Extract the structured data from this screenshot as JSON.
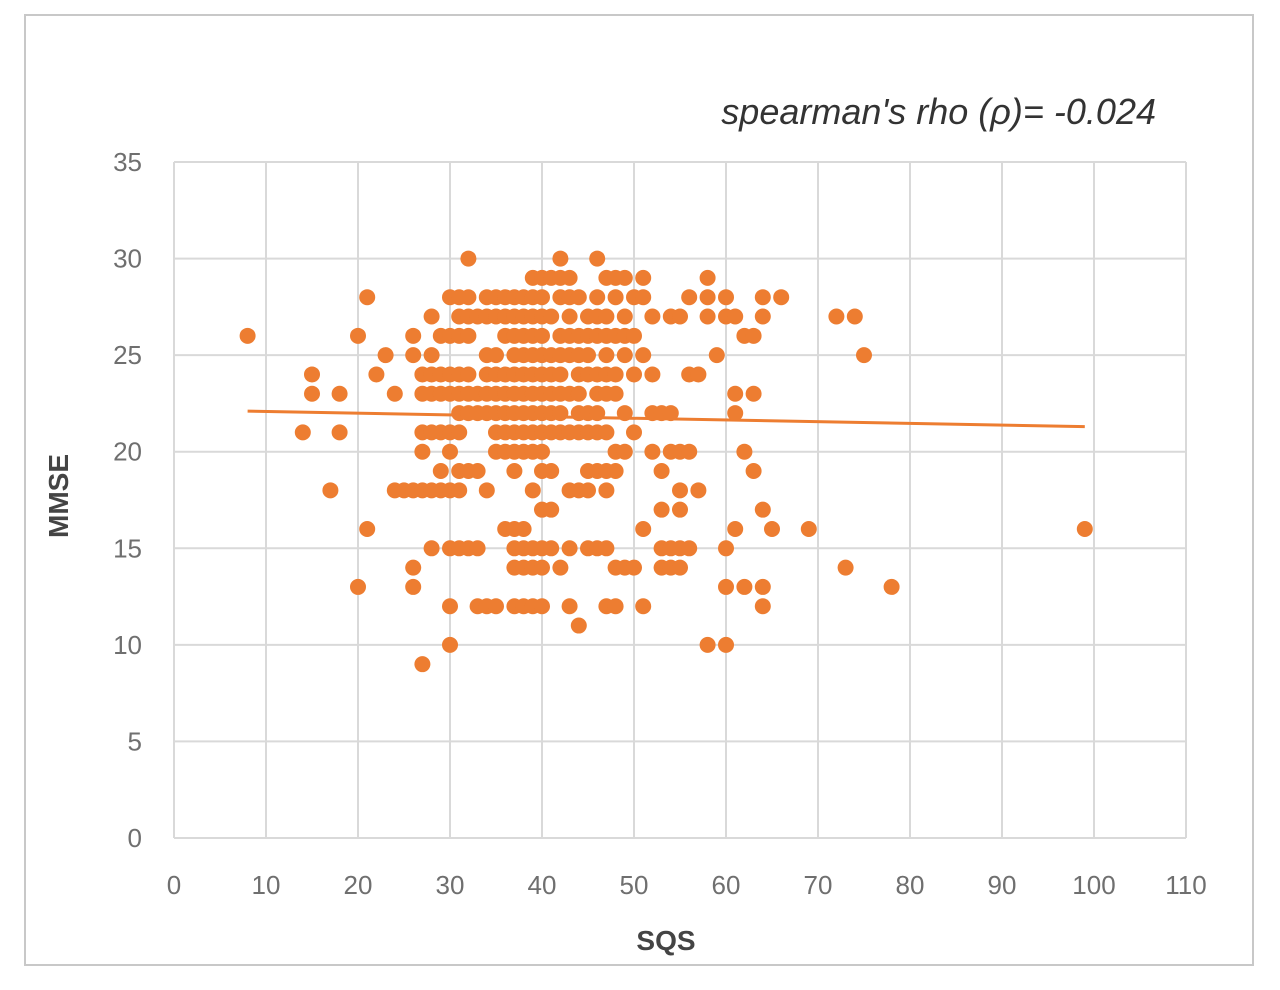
{
  "chart_data": {
    "type": "scatter",
    "title": "",
    "annotation": "spearman's rho (ρ)= -0.024",
    "xlabel": "SQS",
    "ylabel": "MMSE",
    "xlim": [
      0,
      110
    ],
    "ylim": [
      0,
      35
    ],
    "x_ticks": [
      0,
      10,
      20,
      30,
      40,
      50,
      60,
      70,
      80,
      90,
      100,
      110
    ],
    "y_ticks": [
      0,
      5,
      10,
      15,
      20,
      25,
      30,
      35
    ],
    "grid": "both",
    "legend": "none",
    "marker_color": "#ed7d31",
    "trendline": {
      "type": "linear",
      "x": [
        8,
        99
      ],
      "y": [
        22.1,
        21.3
      ],
      "color": "#ed7d31"
    },
    "points": [
      [
        8,
        26
      ],
      [
        14,
        21
      ],
      [
        15,
        24
      ],
      [
        15,
        23
      ],
      [
        17,
        18
      ],
      [
        18,
        23
      ],
      [
        18,
        21
      ],
      [
        20,
        26
      ],
      [
        20,
        13
      ],
      [
        21,
        28
      ],
      [
        21,
        16
      ],
      [
        22,
        24
      ],
      [
        23,
        25
      ],
      [
        24,
        23
      ],
      [
        24,
        18
      ],
      [
        25,
        18
      ],
      [
        26,
        26
      ],
      [
        26,
        25
      ],
      [
        26,
        18
      ],
      [
        26,
        14
      ],
      [
        26,
        13
      ],
      [
        27,
        24
      ],
      [
        27,
        23
      ],
      [
        27,
        21
      ],
      [
        27,
        20
      ],
      [
        27,
        18
      ],
      [
        27,
        9
      ],
      [
        28,
        27
      ],
      [
        28,
        25
      ],
      [
        28,
        24
      ],
      [
        28,
        23
      ],
      [
        28,
        21
      ],
      [
        28,
        18
      ],
      [
        28,
        15
      ],
      [
        29,
        26
      ],
      [
        29,
        24
      ],
      [
        29,
        23
      ],
      [
        29,
        21
      ],
      [
        29,
        19
      ],
      [
        29,
        18
      ],
      [
        30,
        28
      ],
      [
        30,
        26
      ],
      [
        30,
        24
      ],
      [
        30,
        23
      ],
      [
        30,
        21
      ],
      [
        30,
        20
      ],
      [
        30,
        18
      ],
      [
        30,
        15
      ],
      [
        30,
        12
      ],
      [
        30,
        10
      ],
      [
        31,
        28
      ],
      [
        31,
        27
      ],
      [
        31,
        26
      ],
      [
        31,
        24
      ],
      [
        31,
        23
      ],
      [
        31,
        22
      ],
      [
        31,
        21
      ],
      [
        31,
        19
      ],
      [
        31,
        18
      ],
      [
        31,
        15
      ],
      [
        32,
        30
      ],
      [
        32,
        28
      ],
      [
        32,
        27
      ],
      [
        32,
        26
      ],
      [
        32,
        24
      ],
      [
        32,
        23
      ],
      [
        32,
        22
      ],
      [
        32,
        19
      ],
      [
        32,
        15
      ],
      [
        33,
        27
      ],
      [
        33,
        23
      ],
      [
        33,
        22
      ],
      [
        33,
        19
      ],
      [
        33,
        15
      ],
      [
        33,
        12
      ],
      [
        34,
        28
      ],
      [
        34,
        27
      ],
      [
        34,
        25
      ],
      [
        34,
        24
      ],
      [
        34,
        23
      ],
      [
        34,
        22
      ],
      [
        34,
        18
      ],
      [
        34,
        12
      ],
      [
        35,
        28
      ],
      [
        35,
        27
      ],
      [
        35,
        25
      ],
      [
        35,
        24
      ],
      [
        35,
        23
      ],
      [
        35,
        22
      ],
      [
        35,
        21
      ],
      [
        35,
        20
      ],
      [
        35,
        12
      ],
      [
        36,
        28
      ],
      [
        36,
        27
      ],
      [
        36,
        26
      ],
      [
        36,
        24
      ],
      [
        36,
        23
      ],
      [
        36,
        22
      ],
      [
        36,
        21
      ],
      [
        36,
        20
      ],
      [
        36,
        16
      ],
      [
        37,
        28
      ],
      [
        37,
        27
      ],
      [
        37,
        26
      ],
      [
        37,
        25
      ],
      [
        37,
        24
      ],
      [
        37,
        23
      ],
      [
        37,
        22
      ],
      [
        37,
        21
      ],
      [
        37,
        20
      ],
      [
        37,
        19
      ],
      [
        37,
        16
      ],
      [
        37,
        15
      ],
      [
        37,
        14
      ],
      [
        37,
        12
      ],
      [
        38,
        28
      ],
      [
        38,
        27
      ],
      [
        38,
        26
      ],
      [
        38,
        25
      ],
      [
        38,
        24
      ],
      [
        38,
        23
      ],
      [
        38,
        22
      ],
      [
        38,
        21
      ],
      [
        38,
        20
      ],
      [
        38,
        16
      ],
      [
        38,
        15
      ],
      [
        38,
        14
      ],
      [
        38,
        12
      ],
      [
        39,
        29
      ],
      [
        39,
        28
      ],
      [
        39,
        27
      ],
      [
        39,
        26
      ],
      [
        39,
        25
      ],
      [
        39,
        24
      ],
      [
        39,
        23
      ],
      [
        39,
        22
      ],
      [
        39,
        21
      ],
      [
        39,
        20
      ],
      [
        39,
        18
      ],
      [
        39,
        15
      ],
      [
        39,
        14
      ],
      [
        39,
        12
      ],
      [
        40,
        29
      ],
      [
        40,
        28
      ],
      [
        40,
        27
      ],
      [
        40,
        26
      ],
      [
        40,
        25
      ],
      [
        40,
        24
      ],
      [
        40,
        23
      ],
      [
        40,
        22
      ],
      [
        40,
        21
      ],
      [
        40,
        20
      ],
      [
        40,
        19
      ],
      [
        40,
        17
      ],
      [
        40,
        15
      ],
      [
        40,
        14
      ],
      [
        40,
        12
      ],
      [
        41,
        29
      ],
      [
        41,
        27
      ],
      [
        41,
        25
      ],
      [
        41,
        24
      ],
      [
        41,
        23
      ],
      [
        41,
        22
      ],
      [
        41,
        21
      ],
      [
        41,
        19
      ],
      [
        41,
        17
      ],
      [
        41,
        15
      ],
      [
        42,
        30
      ],
      [
        42,
        29
      ],
      [
        42,
        28
      ],
      [
        42,
        26
      ],
      [
        42,
        25
      ],
      [
        42,
        24
      ],
      [
        42,
        23
      ],
      [
        42,
        22
      ],
      [
        42,
        21
      ],
      [
        42,
        14
      ],
      [
        43,
        29
      ],
      [
        43,
        28
      ],
      [
        43,
        27
      ],
      [
        43,
        26
      ],
      [
        43,
        25
      ],
      [
        43,
        23
      ],
      [
        43,
        21
      ],
      [
        43,
        18
      ],
      [
        43,
        15
      ],
      [
        43,
        12
      ],
      [
        44,
        28
      ],
      [
        44,
        26
      ],
      [
        44,
        25
      ],
      [
        44,
        24
      ],
      [
        44,
        23
      ],
      [
        44,
        22
      ],
      [
        44,
        21
      ],
      [
        44,
        18
      ],
      [
        44,
        11
      ],
      [
        45,
        27
      ],
      [
        45,
        26
      ],
      [
        45,
        25
      ],
      [
        45,
        24
      ],
      [
        45,
        22
      ],
      [
        45,
        21
      ],
      [
        45,
        19
      ],
      [
        45,
        18
      ],
      [
        45,
        15
      ],
      [
        46,
        30
      ],
      [
        46,
        28
      ],
      [
        46,
        27
      ],
      [
        46,
        26
      ],
      [
        46,
        24
      ],
      [
        46,
        23
      ],
      [
        46,
        22
      ],
      [
        46,
        21
      ],
      [
        46,
        19
      ],
      [
        46,
        15
      ],
      [
        47,
        29
      ],
      [
        47,
        27
      ],
      [
        47,
        26
      ],
      [
        47,
        25
      ],
      [
        47,
        24
      ],
      [
        47,
        23
      ],
      [
        47,
        21
      ],
      [
        47,
        19
      ],
      [
        47,
        18
      ],
      [
        47,
        15
      ],
      [
        47,
        12
      ],
      [
        48,
        29
      ],
      [
        48,
        28
      ],
      [
        48,
        26
      ],
      [
        48,
        24
      ],
      [
        48,
        23
      ],
      [
        48,
        20
      ],
      [
        48,
        19
      ],
      [
        48,
        14
      ],
      [
        48,
        12
      ],
      [
        49,
        29
      ],
      [
        49,
        27
      ],
      [
        49,
        26
      ],
      [
        49,
        25
      ],
      [
        49,
        22
      ],
      [
        49,
        20
      ],
      [
        49,
        14
      ],
      [
        50,
        28
      ],
      [
        50,
        26
      ],
      [
        50,
        24
      ],
      [
        50,
        21
      ],
      [
        50,
        14
      ],
      [
        51,
        29
      ],
      [
        51,
        28
      ],
      [
        51,
        25
      ],
      [
        51,
        16
      ],
      [
        51,
        12
      ],
      [
        52,
        27
      ],
      [
        52,
        24
      ],
      [
        52,
        22
      ],
      [
        52,
        20
      ],
      [
        53,
        22
      ],
      [
        53,
        19
      ],
      [
        53,
        17
      ],
      [
        53,
        15
      ],
      [
        53,
        14
      ],
      [
        54,
        27
      ],
      [
        54,
        22
      ],
      [
        54,
        20
      ],
      [
        54,
        15
      ],
      [
        54,
        14
      ],
      [
        55,
        27
      ],
      [
        55,
        20
      ],
      [
        55,
        18
      ],
      [
        55,
        17
      ],
      [
        55,
        15
      ],
      [
        55,
        14
      ],
      [
        56,
        28
      ],
      [
        56,
        24
      ],
      [
        56,
        20
      ],
      [
        56,
        15
      ],
      [
        57,
        24
      ],
      [
        57,
        18
      ],
      [
        58,
        29
      ],
      [
        58,
        28
      ],
      [
        58,
        27
      ],
      [
        58,
        10
      ],
      [
        59,
        25
      ],
      [
        60,
        28
      ],
      [
        60,
        27
      ],
      [
        60,
        15
      ],
      [
        60,
        13
      ],
      [
        60,
        10
      ],
      [
        61,
        27
      ],
      [
        61,
        23
      ],
      [
        61,
        22
      ],
      [
        61,
        16
      ],
      [
        62,
        26
      ],
      [
        62,
        20
      ],
      [
        62,
        13
      ],
      [
        63,
        26
      ],
      [
        63,
        23
      ],
      [
        63,
        19
      ],
      [
        64,
        28
      ],
      [
        64,
        27
      ],
      [
        64,
        17
      ],
      [
        64,
        13
      ],
      [
        64,
        12
      ],
      [
        65,
        16
      ],
      [
        66,
        28
      ],
      [
        69,
        16
      ],
      [
        72,
        27
      ],
      [
        73,
        14
      ],
      [
        74,
        27
      ],
      [
        75,
        25
      ],
      [
        78,
        13
      ],
      [
        99,
        16
      ]
    ]
  }
}
